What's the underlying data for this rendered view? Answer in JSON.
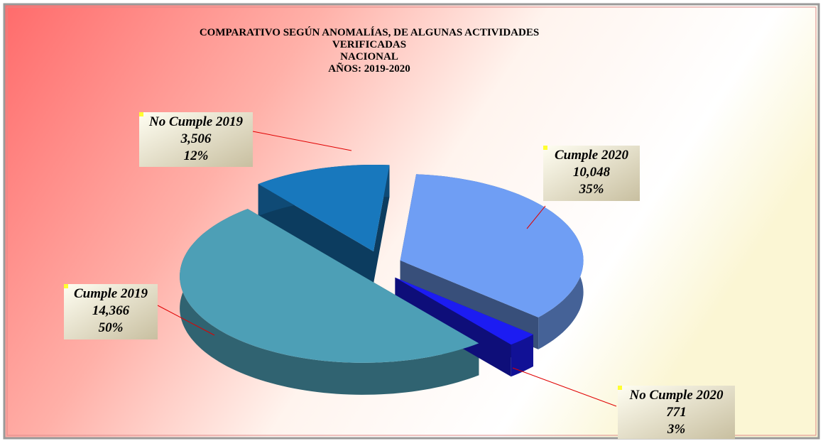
{
  "chart_data": {
    "type": "pie",
    "title": [
      "COMPARATIVO SEGÚN ANOMALÍAS, DE ALGUNAS ACTIVIDADES",
      "VERIFICADAS",
      "NACIONAL",
      "AÑOS: 2019-2020"
    ],
    "categories": [
      "Cumple 2020",
      "No Cumple 2020",
      "Cumple 2019",
      "No Cumple 2019"
    ],
    "values": [
      10048,
      771,
      14366,
      3506
    ],
    "value_labels": [
      "10,048",
      "771",
      "14,366",
      "3,506"
    ],
    "percentages": [
      35,
      3,
      50,
      12
    ],
    "percentage_labels": [
      "35%",
      "3%",
      "50%",
      "12%"
    ],
    "colors": [
      "#6f9ef4",
      "#1c1cf2",
      "#4d9fb6",
      "#1878bd"
    ]
  }
}
